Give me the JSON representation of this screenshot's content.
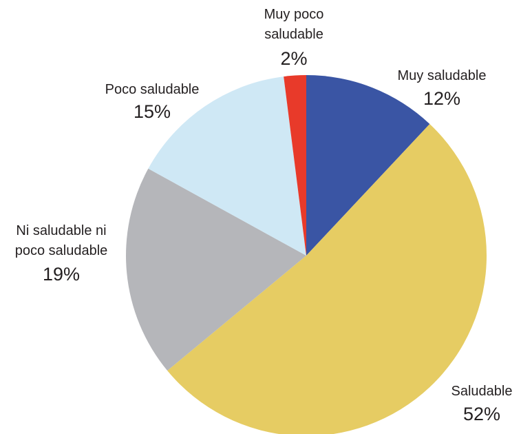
{
  "chart_data": {
    "type": "pie",
    "title": "",
    "start_angle_deg": 0,
    "direction": "clockwise",
    "slices": [
      {
        "label_lines": [
          "Muy saludable"
        ],
        "value": 12,
        "value_label": "12%",
        "color": "#3a55a4"
      },
      {
        "label_lines": [
          "Saludable"
        ],
        "value": 52,
        "value_label": "52%",
        "color": "#e6cc63"
      },
      {
        "label_lines": [
          "Ni saludable ni",
          "poco saludable"
        ],
        "value": 19,
        "value_label": "19%",
        "color": "#b5b6ba"
      },
      {
        "label_lines": [
          "Poco saludable"
        ],
        "value": 15,
        "value_label": "15%",
        "color": "#cfe8f5"
      },
      {
        "label_lines": [
          "Muy poco",
          "saludable"
        ],
        "value": 2,
        "value_label": "2%",
        "color": "#e83a2a"
      }
    ]
  }
}
